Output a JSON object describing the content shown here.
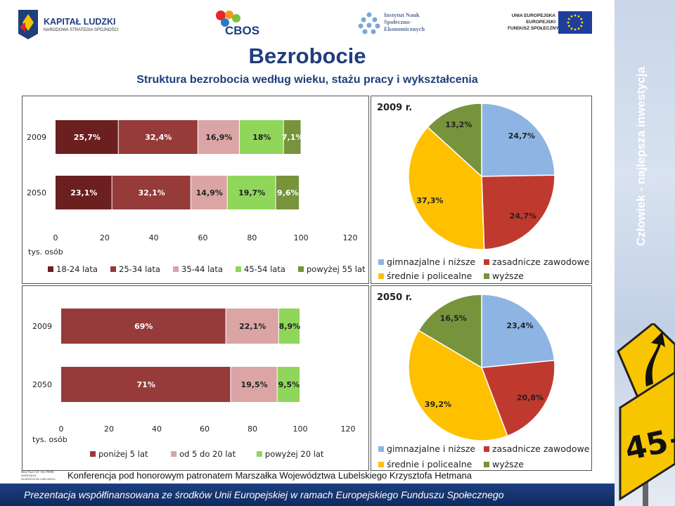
{
  "logos": {
    "kapital_title": "KAPITAŁ LUDZKI",
    "kapital_sub": "NARODOWA STRATEGIA SPÓJNOŚCI",
    "cbos": "CBOS",
    "insp_line1": "Instytut Nauk",
    "insp_line2": "Społeczno-",
    "insp_line3": "Ekonomicznych",
    "ue_line1": "UNIA EUROPEJSKA",
    "ue_line2": "EUROPEJSKI",
    "ue_line3": "FUNDUSZ SPOŁECZNY"
  },
  "header": {
    "title": "Bezrobocie",
    "subtitle": "Struktura bezrobocia według wieku, stażu pracy i wykształcenia"
  },
  "sidebar": {
    "slogan": "Człowiek - najlepsza inwestycja"
  },
  "footer": {
    "conference": "Konferencja pod honorowym patronatem Marszałka Województwa Lubelskiego Krzysztofa Hetmana",
    "funding": "Prezentacja współfinansowana ze środków Unii Europejskiej w ramach Europejskiego Funduszu Społecznego",
    "hetman_logo_text": "KRZYSZTOF HETMAN MARSZAŁEK WOJEWÓDZTWA LUBELSKIEGO"
  },
  "colors": {
    "dark_red": "#6b1f1f",
    "red": "#963a3a",
    "pink": "#dba5a5",
    "green": "#8fd65a",
    "olive": "#77933c",
    "blue": "#8db4e2",
    "red_pie": "#c0392f",
    "yellow": "#ffc000",
    "green_pie": "#77933c",
    "title_blue": "#1f3e7c"
  },
  "chart_data": [
    {
      "type": "bar",
      "stacked": true,
      "orientation": "horizontal",
      "categories": [
        "2009",
        "2050"
      ],
      "series": [
        {
          "name": "18-24 lata",
          "values": [
            25.7,
            23.1
          ],
          "labels": [
            "25,7%",
            "23,1%"
          ]
        },
        {
          "name": "25-34 lata",
          "values": [
            32.4,
            32.1
          ],
          "labels": [
            "32,4%",
            "32,1%"
          ]
        },
        {
          "name": "35-44 lata",
          "values": [
            16.9,
            14.9
          ],
          "labels": [
            "16,9%",
            "14,9%"
          ]
        },
        {
          "name": "45-54 lata",
          "values": [
            18.0,
            19.7
          ],
          "labels": [
            "18%",
            "19,7%"
          ]
        },
        {
          "name": "powyżej 55 lat",
          "values": [
            7.1,
            9.6
          ],
          "labels": [
            "7,1%",
            "9,6%"
          ]
        }
      ],
      "xlim": [
        0,
        120
      ],
      "xticks": [
        "0",
        "20",
        "40",
        "60",
        "80",
        "100",
        "120"
      ],
      "xlabel": "tys. osób",
      "legend_position": "bottom"
    },
    {
      "type": "pie",
      "title": "2009 r.",
      "slices": [
        {
          "name": "gimnazjalne i niższe",
          "value": 24.7,
          "label": "24,7%"
        },
        {
          "name": "zasadnicze zawodowe",
          "value": 24.7,
          "label": "24,7%"
        },
        {
          "name": "średnie i policealne",
          "value": 37.3,
          "label": "37,3%"
        },
        {
          "name": "wyższe",
          "value": 13.2,
          "label": "13,2%"
        }
      ],
      "legend_position": "bottom"
    },
    {
      "type": "bar",
      "stacked": true,
      "orientation": "horizontal",
      "categories": [
        "2009",
        "2050"
      ],
      "series": [
        {
          "name": "poniżej 5 lat",
          "values": [
            69.0,
            71.0
          ],
          "labels": [
            "69%",
            "71%"
          ]
        },
        {
          "name": "od 5 do 20 lat",
          "values": [
            22.1,
            19.5
          ],
          "labels": [
            "22,1%",
            "19,5%"
          ]
        },
        {
          "name": "powyżej 20 lat",
          "values": [
            8.9,
            9.5
          ],
          "labels": [
            "8,9%",
            "9,5%"
          ]
        }
      ],
      "xlim": [
        0,
        120
      ],
      "xticks": [
        "0",
        "20",
        "40",
        "60",
        "80",
        "100",
        "120"
      ],
      "xlabel": "tys. osób",
      "legend_position": "bottom"
    },
    {
      "type": "pie",
      "title": "2050 r.",
      "slices": [
        {
          "name": "gimnazjalne i niższe",
          "value": 23.4,
          "label": "23,4%"
        },
        {
          "name": "zasadnicze zawodowe",
          "value": 20.8,
          "label": "20,8%"
        },
        {
          "name": "średnie i policealne",
          "value": 39.2,
          "label": "39,2%"
        },
        {
          "name": "wyższe",
          "value": 16.5,
          "label": "16,5%"
        }
      ],
      "legend_position": "bottom"
    }
  ]
}
